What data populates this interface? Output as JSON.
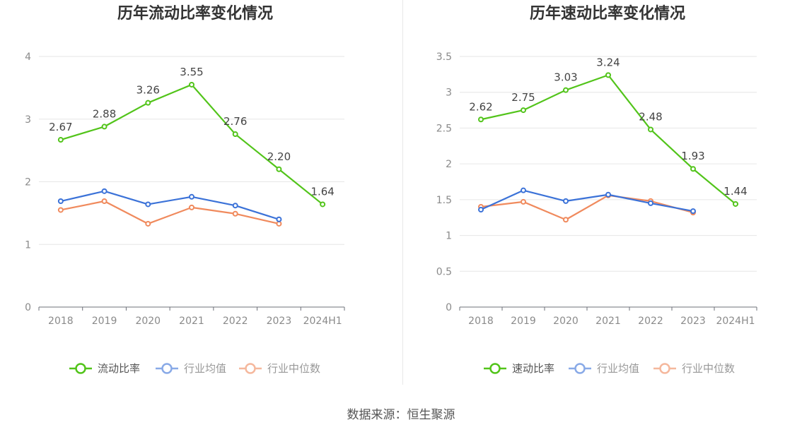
{
  "chart_data": [
    {
      "type": "line",
      "title": "历年流动比率变化情况",
      "categories": [
        "2018",
        "2019",
        "2020",
        "2021",
        "2022",
        "2023",
        "2024H1"
      ],
      "ylim": [
        0,
        4
      ],
      "yticks": [
        0,
        1,
        2,
        3,
        4
      ],
      "ytick_labels": [
        "0",
        "1",
        "2",
        "3",
        "4"
      ],
      "legend_position": "bottom",
      "series": [
        {
          "name": "流动比率",
          "color": "#52c41a",
          "values": [
            2.67,
            2.88,
            3.26,
            3.55,
            2.76,
            2.2,
            1.64
          ],
          "labels": [
            "2.67",
            "2.88",
            "3.26",
            "3.55",
            "2.76",
            "2.20",
            "1.64"
          ]
        },
        {
          "name": "行业均值",
          "color": "#3b72d8",
          "values": [
            1.69,
            1.85,
            1.64,
            1.76,
            1.62,
            1.4,
            null
          ]
        },
        {
          "name": "行业中位数",
          "color": "#f08a5d",
          "values": [
            1.55,
            1.69,
            1.33,
            1.59,
            1.49,
            1.33,
            null
          ]
        }
      ]
    },
    {
      "type": "line",
      "title": "历年速动比率变化情况",
      "categories": [
        "2018",
        "2019",
        "2020",
        "2021",
        "2022",
        "2023",
        "2024H1"
      ],
      "ylim": [
        0,
        3.5
      ],
      "yticks": [
        0,
        0.5,
        1,
        1.5,
        2,
        2.5,
        3,
        3.5
      ],
      "ytick_labels": [
        "0",
        "0.5",
        "1",
        "1.5",
        "2",
        "2.5",
        "3",
        "3.5"
      ],
      "legend_position": "bottom",
      "series": [
        {
          "name": "速动比率",
          "color": "#52c41a",
          "values": [
            2.62,
            2.75,
            3.03,
            3.24,
            2.48,
            1.93,
            1.44
          ],
          "labels": [
            "2.62",
            "2.75",
            "3.03",
            "3.24",
            "2.48",
            "1.93",
            "1.44"
          ]
        },
        {
          "name": "行业均值",
          "color": "#3b72d8",
          "values": [
            1.36,
            1.63,
            1.48,
            1.57,
            1.45,
            1.34,
            null
          ]
        },
        {
          "name": "行业中位数",
          "color": "#f08a5d",
          "values": [
            1.4,
            1.47,
            1.22,
            1.56,
            1.48,
            1.32,
            null
          ]
        }
      ]
    }
  ],
  "source": "数据来源：恒生聚源"
}
